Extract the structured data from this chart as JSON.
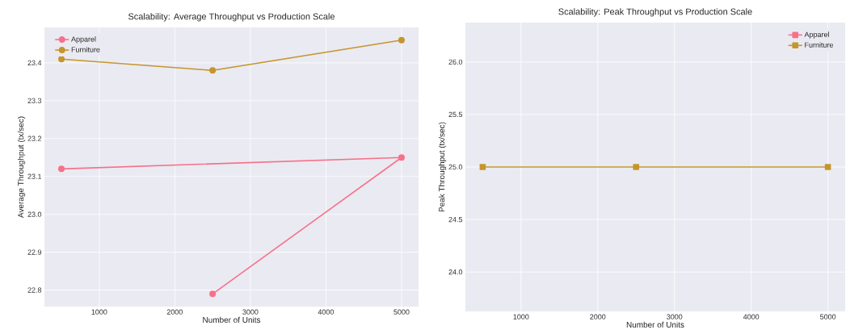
{
  "chart_data": [
    {
      "type": "line",
      "title": "Scalability: Average Throughput vs Production Scale",
      "xlabel": "Number of Units",
      "ylabel": "Average Throughput (tx/sec)",
      "xlim": [
        275,
        5225
      ],
      "ylim": [
        22.7565,
        23.4935
      ],
      "xticks": [
        1000,
        2000,
        3000,
        4000,
        5000
      ],
      "yticks": [
        {
          "value": 22.8,
          "label": "22.8"
        },
        {
          "value": 22.9,
          "label": "22.9"
        },
        {
          "value": 23.0,
          "label": "23.0"
        },
        {
          "value": 23.1,
          "label": "23.1"
        },
        {
          "value": 23.2,
          "label": "23.2"
        },
        {
          "value": 23.3,
          "label": "23.3"
        },
        {
          "value": 23.4,
          "label": "23.4"
        }
      ],
      "grid": true,
      "legend": "top left",
      "marker": "circle",
      "series": [
        {
          "name": "Apparel",
          "color": "#f77189",
          "x": [
            500,
            5000,
            2500
          ],
          "values": [
            23.12,
            23.15,
            22.79
          ]
        },
        {
          "name": "Furniture",
          "color": "#c4962c",
          "x": [
            500,
            2500,
            5000
          ],
          "values": [
            23.41,
            23.38,
            23.46
          ]
        }
      ]
    },
    {
      "type": "line",
      "title": "Scalability: Peak Throughput vs Production Scale",
      "xlabel": "Number of Units",
      "ylabel": "Peak Throughput (tx/sec)",
      "xlim": [
        275,
        5225
      ],
      "ylim": [
        23.625,
        26.375
      ],
      "xticks": [
        1000,
        2000,
        3000,
        4000,
        5000
      ],
      "yticks": [
        {
          "value": 24.0,
          "label": "24.0"
        },
        {
          "value": 24.5,
          "label": "24.5"
        },
        {
          "value": 25.0,
          "label": "25.0"
        },
        {
          "value": 25.5,
          "label": "25.5"
        },
        {
          "value": 26.0,
          "label": "26.0"
        }
      ],
      "grid": true,
      "legend": "top right",
      "marker": "square",
      "x": [
        500,
        2500,
        5000
      ],
      "series": [
        {
          "name": "Apparel",
          "color": "#f77189",
          "values": [
            null,
            null,
            null
          ]
        },
        {
          "name": "Furniture",
          "color": "#c4962c",
          "values": [
            25.0,
            25.0,
            25.0
          ]
        }
      ]
    }
  ]
}
